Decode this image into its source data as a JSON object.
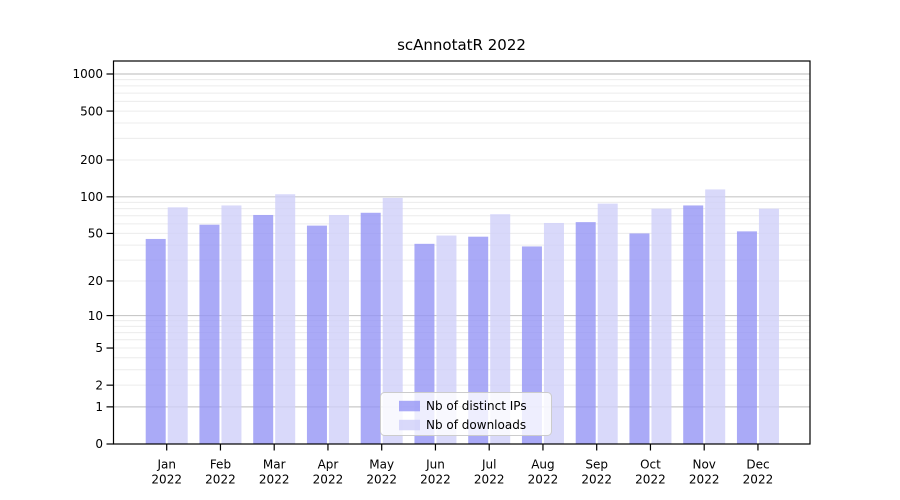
{
  "chart_data": {
    "type": "bar",
    "title": "scAnnotatR 2022",
    "categories": [
      "Jan",
      "Feb",
      "Mar",
      "Apr",
      "May",
      "Jun",
      "Jul",
      "Aug",
      "Sep",
      "Oct",
      "Nov",
      "Dec"
    ],
    "x_year_label": "2022",
    "series": [
      {
        "name": "Nb of distinct IPs",
        "color": "#9595f5",
        "values": [
          45,
          59,
          71,
          58,
          74,
          41,
          47,
          39,
          62,
          50,
          85,
          52
        ]
      },
      {
        "name": "Nb of downloads",
        "color": "#cfcff9",
        "values": [
          82,
          85,
          105,
          71,
          98,
          48,
          72,
          61,
          88,
          80,
          115,
          80
        ]
      }
    ],
    "y_axis": {
      "scale": "log10(value+1)",
      "ticks": [
        1000,
        500,
        200,
        100,
        50,
        20,
        10,
        5,
        2,
        1,
        0
      ],
      "range": [
        0,
        1000
      ]
    },
    "grid": "on",
    "legend_position": "bottom-center-inside"
  },
  "colors": {
    "bar_distinct_ips": "#9595f5",
    "bar_downloads": "#cfcff9",
    "bar_opacity": 0.8,
    "major_grid": "#c8c8c8",
    "minor_grid": "#ececec",
    "axis": "#000000",
    "legend_border": "#cccccc",
    "legend_background": "rgba(255,255,255,0.8)",
    "background": "#ffffff"
  }
}
